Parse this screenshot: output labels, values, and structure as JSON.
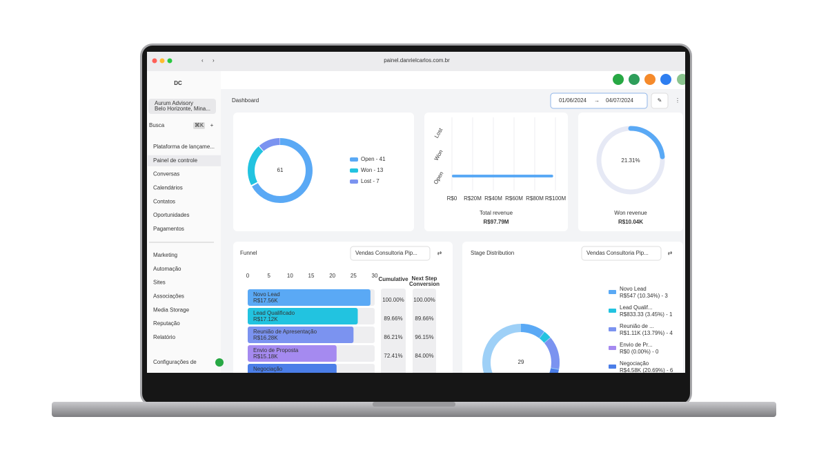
{
  "browser": {
    "url": "painel.danrielcarlos.com.br"
  },
  "sidebar": {
    "logo": "DC",
    "account": {
      "name": "Aurum Advisory",
      "location": "Belo Horizonte, Mina..."
    },
    "search": "Busca",
    "search_shortcut": "⌘K",
    "menu_top": [
      "Plataforma de lançame...",
      "Painel de controle",
      "Conversas",
      "Calendários",
      "Contatos",
      "Oportunidades",
      "Pagamentos"
    ],
    "menu_bottom": [
      "Marketing",
      "Automação",
      "Sites",
      "Associações",
      "Media Storage",
      "Reputação",
      "Relatório"
    ],
    "settings": "Configurações de"
  },
  "header": {
    "title": "Dashboard",
    "date_from": "01/06/2024",
    "date_to": "04/07/2024"
  },
  "opportunities": {
    "total": "61",
    "legend": [
      "Open - 41",
      "Won - 13",
      "Lost - 7"
    ]
  },
  "revenue": {
    "categories": [
      "Lost",
      "Won",
      "Open"
    ],
    "xticks": [
      {
        "value": 0,
        "label": "R$0"
      },
      {
        "value": 20000000,
        "label": "R$20M"
      },
      {
        "value": 40000000,
        "label": "R$40M"
      },
      {
        "value": 60000000,
        "label": "R$60M"
      },
      {
        "value": 80000000,
        "label": "R$80M"
      },
      {
        "value": 100000000,
        "label": "R$100M"
      }
    ],
    "values": [
      null,
      null,
      97790000
    ],
    "label": "Total revenue",
    "value_label": "R$97.79M"
  },
  "won": {
    "percent": "21.31%",
    "label": "Won revenue",
    "value": "R$10.04K"
  },
  "funnel": {
    "title": "Funnel",
    "pipeline": "Vendas Consultoria Pip...",
    "ticks": [
      0,
      5,
      10,
      15,
      20,
      25,
      30
    ],
    "columns": {
      "cumulative": "Cumulative",
      "conversion_1": "Next Step",
      "conversion_2": "Conversion"
    },
    "stages": [
      {
        "name": "Novo Lead",
        "amount": "R$17.56K",
        "count": 29,
        "cumulative": "100.00%",
        "conversion": "100.00%"
      },
      {
        "name": "Lead Qualificado",
        "amount": "R$17.12K",
        "count": 26,
        "cumulative": "89.66%",
        "conversion": "89.66%"
      },
      {
        "name": "Reunião de Apresentação",
        "amount": "R$16.28K",
        "count": 25,
        "cumulative": "86.21%",
        "conversion": "96.15%"
      },
      {
        "name": "Envio de Proposta",
        "amount": "R$15.18K",
        "count": 21,
        "cumulative": "72.41%",
        "conversion": "84.00%"
      },
      {
        "name": "Negociação",
        "amount": "",
        "count": 21,
        "cumulative": "",
        "conversion": ""
      }
    ]
  },
  "stage_distribution": {
    "title": "Stage Distribution",
    "pipeline": "Vendas Consultoria Pip...",
    "total": "29",
    "legend": [
      {
        "name": "Novo Lead",
        "detail": "R$547 (10.34%) - 3"
      },
      {
        "name": "Lead Qualif...",
        "detail": "R$833.33 (3.45%) - 1"
      },
      {
        "name": "Reunião de ...",
        "detail": "R$1.11K (13.79%) - 4"
      },
      {
        "name": "Envio de Pr...",
        "detail": "R$0 (0.00%) - 0"
      },
      {
        "name": "Negociação",
        "detail": "R$4.58K (20.69%) - 6"
      }
    ]
  }
}
